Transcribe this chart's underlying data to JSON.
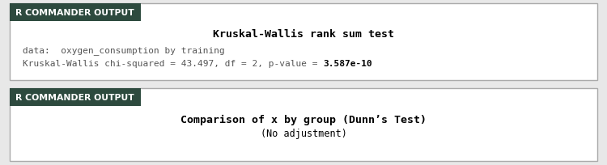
{
  "header_bg_color": "#2d4a3e",
  "header_text_color": "#ffffff",
  "header_label": "R COMMANDER OUTPUT",
  "box_border_color": "#aaaaaa",
  "panel1_title": "Kruskal-Wallis rank sum test",
  "panel1_line1": "data:  oxygen_consumption by training",
  "panel1_line2_normal": "Kruskal-Wallis chi-squared = 43.497, df = 2, p-value = ",
  "panel1_line2_bold": "3.587e-10",
  "panel2_title": "Comparison of x by group (Dunn’s Test)",
  "panel2_sub": "(No adjustment)",
  "mono_font": "monospace",
  "sans_font": "DejaVu Sans",
  "fig_bg_color": "#e8e8e8",
  "panel_bg_color": "#ffffff",
  "text_gray": "#555555",
  "text_black": "#000000"
}
